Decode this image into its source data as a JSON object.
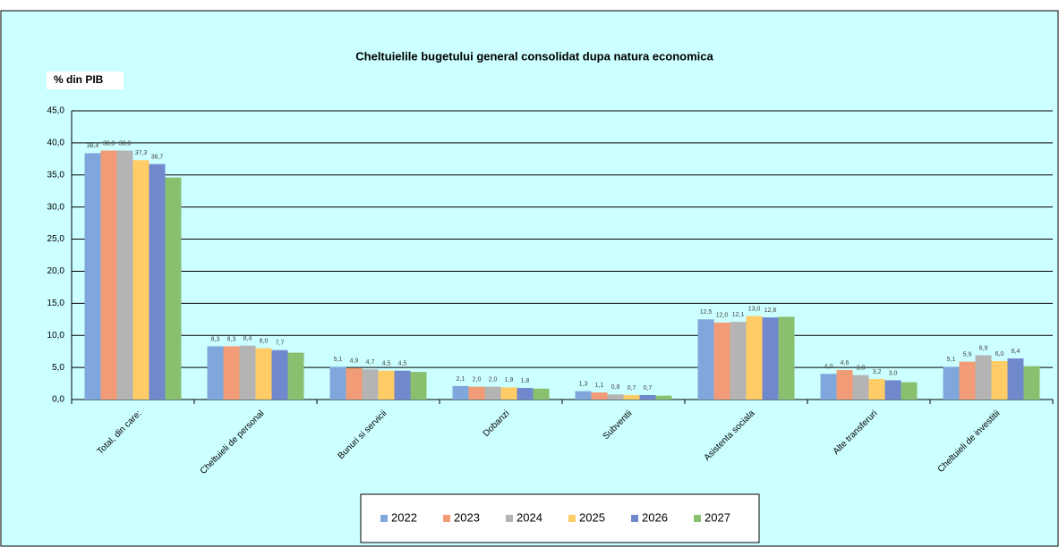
{
  "chart_data": {
    "type": "bar",
    "title": "Cheltuielile bugetului general consolidat dupa natura economica",
    "y_label": "% din PIB",
    "categories": [
      "Total, din care:",
      "Cheltuieli de personal",
      "Bunuri si servicii",
      "Dobanzi",
      "Subventii",
      "Asistenta sociala",
      "Alte transferuri",
      "Cheltuieli de investitii"
    ],
    "series": [
      {
        "name": "2022",
        "color": "#7fa7dc",
        "values": [
          38.4,
          8.3,
          5.1,
          2.1,
          1.3,
          12.5,
          4.0,
          5.1
        ],
        "value_labels": [
          "38,4",
          "8,3",
          "5,1",
          "2,1",
          "1,3",
          "12,5",
          "4,0",
          "5,1"
        ]
      },
      {
        "name": "2023",
        "color": "#f29b77",
        "values": [
          38.8,
          8.3,
          4.9,
          2.0,
          1.1,
          12.0,
          4.6,
          5.9
        ],
        "value_labels": [
          "38,8",
          "8,3",
          "4,9",
          "2,0",
          "1,1",
          "12,0",
          "4,6",
          "5,9"
        ]
      },
      {
        "name": "2024",
        "color": "#b4b4b4",
        "values": [
          38.8,
          8.4,
          4.7,
          2.0,
          0.8,
          12.1,
          3.8,
          6.9
        ],
        "value_labels": [
          "38,8",
          "8,4",
          "4,7",
          "2,0",
          "0,8",
          "12,1",
          "3,8",
          "6,9"
        ]
      },
      {
        "name": "2025",
        "color": "#ffcc66",
        "values": [
          37.3,
          8.0,
          4.5,
          1.9,
          0.7,
          13.0,
          3.2,
          6.0
        ],
        "value_labels": [
          "37,3",
          "8,0",
          "4,5",
          "1,9",
          "0,7",
          "13,0",
          "3,2",
          "6,0"
        ]
      },
      {
        "name": "2026",
        "color": "#7088cc",
        "values": [
          36.7,
          7.7,
          4.5,
          1.8,
          0.7,
          12.8,
          3.0,
          6.4
        ],
        "value_labels": [
          "36,7",
          "7,7",
          "4,5",
          "1,8",
          "0,7",
          "12,8",
          "3,0",
          "6,4"
        ]
      },
      {
        "name": "2027",
        "color": "#88c070",
        "values": [
          34.6,
          7.3,
          4.3,
          1.7,
          0.6,
          12.9,
          2.7,
          5.2
        ]
      }
    ],
    "ylim": [
      0,
      45
    ],
    "yticks": [
      {
        "value": 0,
        "label": "0,0"
      },
      {
        "value": 5,
        "label": "5,0"
      },
      {
        "value": 10,
        "label": "10,0"
      },
      {
        "value": 15,
        "label": "15,0"
      },
      {
        "value": 20,
        "label": "20,0"
      },
      {
        "value": 25,
        "label": "25,0"
      },
      {
        "value": 30,
        "label": "30,0"
      },
      {
        "value": 35,
        "label": "35,0"
      },
      {
        "value": 40,
        "label": "40,0"
      },
      {
        "value": 45,
        "label": "45,0"
      }
    ],
    "grid": true,
    "legend": "bottom"
  }
}
